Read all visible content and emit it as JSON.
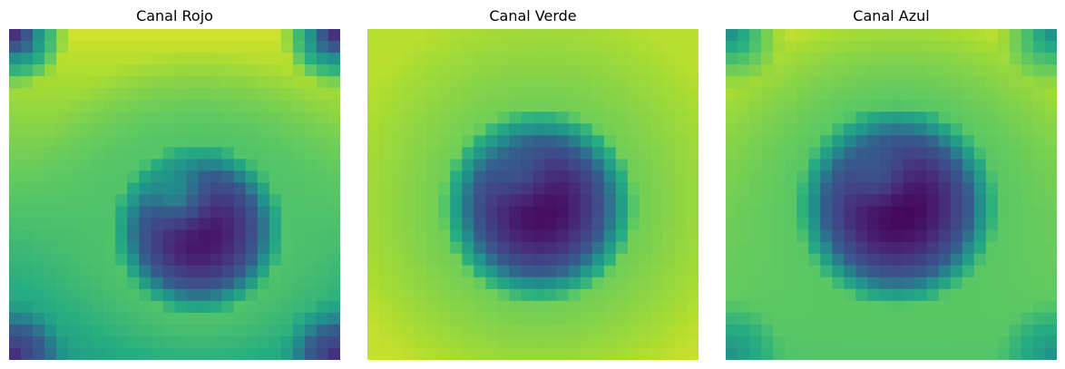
{
  "figure": {
    "panels": [
      {
        "title": "Canal Rojo"
      },
      {
        "title": "Canal Verde"
      },
      {
        "title": "Canal Azul"
      }
    ]
  },
  "chart_data": [
    {
      "type": "heatmap",
      "title": "Canal Rojo",
      "colormap": "viridis",
      "grid": false,
      "axes_visible": false,
      "value_range": [
        0,
        1
      ],
      "rows": 28,
      "cols": 28,
      "pattern": {
        "center_row": 16.5,
        "center_col": 15.5,
        "radius": 7.3,
        "min_value": 0.04,
        "rim_value": 0.72,
        "top_value": 0.93,
        "bottom_value": 0.55,
        "dark_corners": true,
        "corner_value": 0.18,
        "hole_strength": 0.3
      }
    },
    {
      "type": "heatmap",
      "title": "Canal Verde",
      "colormap": "viridis",
      "grid": false,
      "axes_visible": false,
      "value_range": [
        0,
        1
      ],
      "rows": 28,
      "cols": 28,
      "pattern": {
        "center_row": 14.5,
        "center_col": 14.0,
        "radius": 8.3,
        "min_value": 0.02,
        "rim_value": 0.78,
        "top_value": 0.9,
        "bottom_value": 0.92,
        "dark_corners": false,
        "corner_value": 0.7,
        "hole_strength": 0.18
      }
    },
    {
      "type": "heatmap",
      "title": "Canal Azul",
      "colormap": "viridis",
      "grid": false,
      "axes_visible": false,
      "value_range": [
        0,
        1
      ],
      "rows": 28,
      "cols": 28,
      "pattern": {
        "center_row": 14.5,
        "center_col": 14.0,
        "radius": 8.6,
        "min_value": 0.0,
        "rim_value": 0.74,
        "top_value": 0.93,
        "bottom_value": 0.72,
        "dark_corners": true,
        "corner_value": 0.52,
        "hole_strength": 0.22
      }
    }
  ]
}
